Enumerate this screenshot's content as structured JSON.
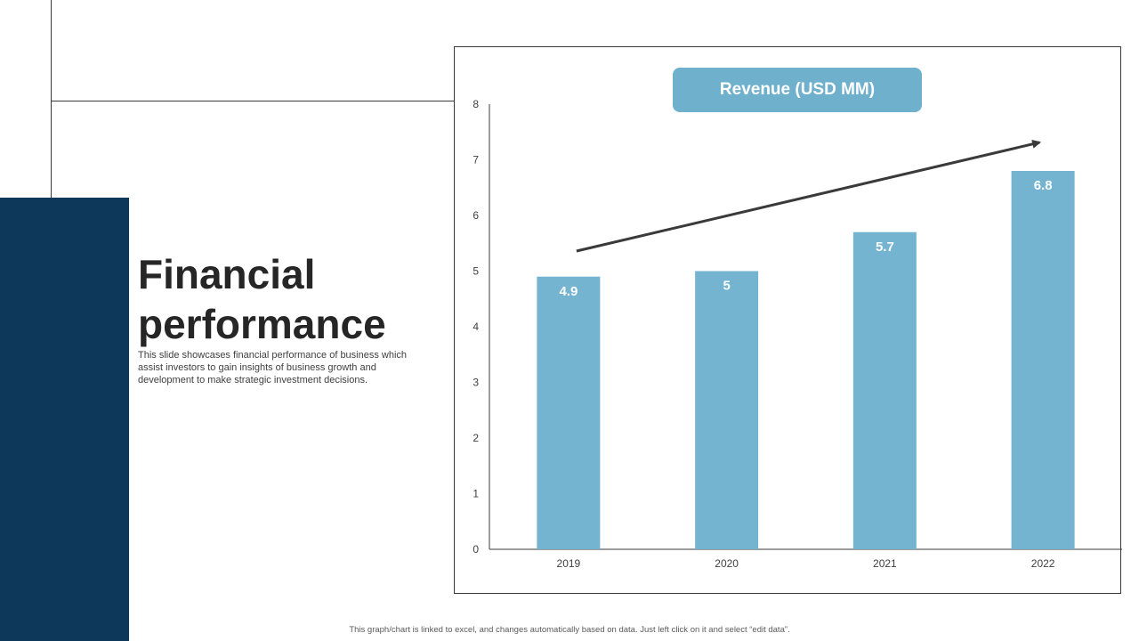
{
  "slide": {
    "title": "Financial\nperformance",
    "description": "This slide showcases financial performance of business which assist investors to gain insights of business growth and development to make strategic investment decisions.",
    "footnote": "This graph/chart is linked to excel, and changes automatically based on data. Just left click on it and select “edit data”."
  },
  "colors": {
    "side_block": "#0e3859",
    "bar": "#74b4d0",
    "title_pill": "#6fb0cc",
    "trend_arrow": "#3a3a3a"
  },
  "chart_data": {
    "type": "bar",
    "title": "Revenue (USD MM)",
    "categories": [
      "2019",
      "2020",
      "2021",
      "2022"
    ],
    "values": [
      4.9,
      5,
      5.7,
      6.8
    ],
    "value_labels": [
      "4.9",
      "5",
      "5.7",
      "6.8"
    ],
    "yticks": [
      "0",
      "1",
      "2",
      "3",
      "4",
      "5",
      "6",
      "7",
      "8"
    ],
    "ylim": [
      0,
      8
    ],
    "xlabel": "",
    "ylabel": "",
    "grid": false,
    "annotations": [
      "upward trend arrow"
    ]
  }
}
